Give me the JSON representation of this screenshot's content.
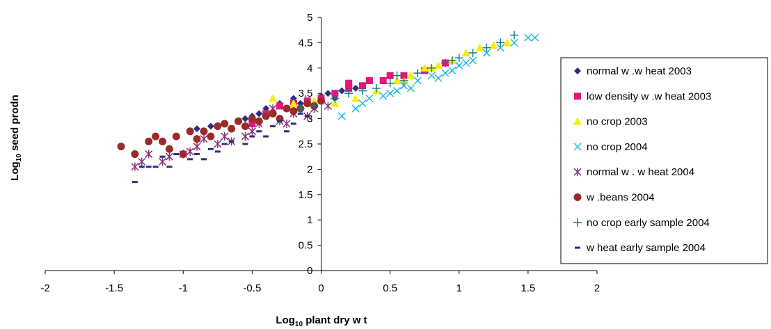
{
  "chart_data": {
    "type": "scatter",
    "title": "",
    "xlabel": "Log10 plant dry wt",
    "ylabel": "Log10 seed prodn",
    "xlabel_parts": {
      "pre": "Log",
      "sub": "10",
      "post": " plant dry w t"
    },
    "ylabel_parts": {
      "pre": "Log",
      "sub": "10",
      "post": " seed prodn"
    },
    "xlim": [
      -2,
      2
    ],
    "ylim": [
      0,
      5
    ],
    "x_ticks": [
      -2,
      -1.5,
      -1,
      -0.5,
      0,
      0.5,
      1,
      1.5,
      2
    ],
    "y_ticks": [
      0,
      0.5,
      1,
      1.5,
      2,
      2.5,
      3,
      3.5,
      4,
      4.5,
      5
    ],
    "x_tick_labels": [
      "-2",
      "-1.5",
      "-1",
      "-0.5",
      "0",
      "0.5",
      "1",
      "1.5",
      "2"
    ],
    "y_tick_labels": [
      "0",
      "0.5",
      "1",
      "1.5",
      "2",
      "2.5",
      "3",
      "3.5",
      "4",
      "4.5",
      "5"
    ],
    "grid": false,
    "legend_position": "right",
    "series": [
      {
        "name": "normal w .w heat 2003",
        "marker": "diamond",
        "color": "#2b2f7e",
        "points": [
          [
            -0.9,
            2.8
          ],
          [
            -0.8,
            2.85
          ],
          [
            -0.6,
            2.95
          ],
          [
            -0.5,
            3.05
          ],
          [
            -0.4,
            3.2
          ],
          [
            -0.3,
            3.3
          ],
          [
            -0.2,
            3.4
          ],
          [
            -0.1,
            3.35
          ],
          [
            0,
            3.45
          ],
          [
            0.05,
            3.5
          ],
          [
            0.15,
            3.55
          ],
          [
            0.25,
            3.6
          ],
          [
            -0.45,
            3.1
          ],
          [
            -0.55,
            3.0
          ],
          [
            -0.15,
            3.3
          ],
          [
            0.1,
            3.4
          ]
        ]
      },
      {
        "name": "low density w .w heat 2003",
        "marker": "square",
        "color": "#e0187a",
        "points": [
          [
            -0.5,
            2.9
          ],
          [
            -0.4,
            3.1
          ],
          [
            -0.3,
            3.25
          ],
          [
            -0.2,
            3.3
          ],
          [
            0.1,
            3.5
          ],
          [
            0.2,
            3.6
          ],
          [
            0.35,
            3.75
          ],
          [
            0.5,
            3.85
          ],
          [
            0.6,
            3.85
          ],
          [
            0.75,
            3.95
          ],
          [
            0.9,
            4.1
          ],
          [
            0.3,
            3.65
          ],
          [
            0.45,
            3.75
          ],
          [
            -0.1,
            3.35
          ],
          [
            0,
            3.4
          ],
          [
            0.2,
            3.7
          ]
        ]
      },
      {
        "name": "no crop 2003",
        "marker": "triangle",
        "color": "#f2f200",
        "points": [
          [
            -0.35,
            3.4
          ],
          [
            -0.2,
            3.3
          ],
          [
            -0.05,
            3.35
          ],
          [
            0.1,
            3.3
          ],
          [
            0.25,
            3.4
          ],
          [
            0.4,
            3.55
          ],
          [
            0.55,
            3.75
          ],
          [
            0.65,
            3.85
          ],
          [
            0.75,
            4.0
          ],
          [
            0.85,
            4.05
          ],
          [
            0.95,
            4.15
          ],
          [
            1.05,
            4.3
          ],
          [
            1.15,
            4.4
          ],
          [
            1.25,
            4.45
          ],
          [
            1.35,
            4.5
          ],
          [
            0.6,
            3.75
          ],
          [
            0.8,
            4.0
          ]
        ]
      },
      {
        "name": "no crop 2004",
        "marker": "x",
        "color": "#22b5e6",
        "points": [
          [
            0.15,
            3.05
          ],
          [
            0.25,
            3.2
          ],
          [
            0.3,
            3.3
          ],
          [
            0.45,
            3.45
          ],
          [
            0.55,
            3.55
          ],
          [
            0.65,
            3.6
          ],
          [
            0.7,
            3.75
          ],
          [
            0.8,
            3.85
          ],
          [
            0.9,
            3.9
          ],
          [
            1.0,
            4.05
          ],
          [
            1.1,
            4.15
          ],
          [
            1.2,
            4.3
          ],
          [
            1.3,
            4.4
          ],
          [
            1.4,
            4.5
          ],
          [
            1.5,
            4.6
          ],
          [
            1.55,
            4.6
          ],
          [
            0.35,
            3.4
          ],
          [
            0.5,
            3.5
          ],
          [
            0.6,
            3.65
          ],
          [
            0.85,
            3.8
          ],
          [
            0.95,
            3.95
          ],
          [
            1.05,
            4.1
          ]
        ]
      },
      {
        "name": "normal w . w heat 2004",
        "marker": "asterisk",
        "color": "#8b2d7a",
        "points": [
          [
            -1.35,
            2.05
          ],
          [
            -1.25,
            2.3
          ],
          [
            -1.15,
            2.15
          ],
          [
            -1.0,
            2.3
          ],
          [
            -0.9,
            2.45
          ],
          [
            -0.85,
            2.6
          ],
          [
            -0.75,
            2.5
          ],
          [
            -0.65,
            2.55
          ],
          [
            -0.55,
            2.65
          ],
          [
            -0.45,
            2.9
          ],
          [
            -0.3,
            2.95
          ],
          [
            -0.2,
            3.1
          ],
          [
            -0.1,
            3.05
          ],
          [
            -0.05,
            3.2
          ],
          [
            -1.1,
            2.25
          ],
          [
            -0.95,
            2.35
          ],
          [
            -0.7,
            2.65
          ],
          [
            -0.5,
            2.75
          ],
          [
            -0.35,
            3.2
          ],
          [
            -1.3,
            2.15
          ],
          [
            0.05,
            3.25
          ],
          [
            -0.25,
            2.9
          ]
        ]
      },
      {
        "name": "w .beans 2004",
        "marker": "circle",
        "color": "#9b2b2b",
        "points": [
          [
            -1.45,
            2.45
          ],
          [
            -1.35,
            2.3
          ],
          [
            -1.25,
            2.55
          ],
          [
            -1.2,
            2.65
          ],
          [
            -1.15,
            2.55
          ],
          [
            -1.1,
            2.4
          ],
          [
            -1.05,
            2.65
          ],
          [
            -0.95,
            2.75
          ],
          [
            -0.9,
            2.6
          ],
          [
            -0.85,
            2.75
          ],
          [
            -0.8,
            2.65
          ],
          [
            -0.75,
            2.85
          ],
          [
            -0.7,
            2.9
          ],
          [
            -0.65,
            2.8
          ],
          [
            -0.6,
            2.95
          ],
          [
            -0.5,
            3.0
          ],
          [
            -0.45,
            2.95
          ],
          [
            -0.4,
            3.05
          ],
          [
            -0.35,
            3.1
          ],
          [
            -0.25,
            3.2
          ],
          [
            -0.2,
            3.15
          ],
          [
            -0.1,
            3.3
          ],
          [
            -0.05,
            3.25
          ],
          [
            0.0,
            3.35
          ],
          [
            -1.0,
            2.3
          ],
          [
            -0.55,
            2.85
          ],
          [
            -0.3,
            3.0
          ],
          [
            -0.15,
            3.2
          ]
        ]
      },
      {
        "name": "no crop early sample 2004",
        "marker": "plus",
        "color": "#127c86",
        "points": [
          [
            -0.15,
            3.2
          ],
          [
            -0.05,
            3.25
          ],
          [
            0.1,
            3.4
          ],
          [
            0.2,
            3.5
          ],
          [
            0.3,
            3.55
          ],
          [
            0.4,
            3.6
          ],
          [
            0.5,
            3.7
          ],
          [
            0.6,
            3.75
          ],
          [
            0.7,
            3.9
          ],
          [
            0.8,
            4.0
          ],
          [
            0.9,
            4.1
          ],
          [
            1.0,
            4.2
          ],
          [
            1.1,
            4.3
          ],
          [
            1.2,
            4.4
          ],
          [
            1.3,
            4.5
          ],
          [
            1.4,
            4.65
          ],
          [
            0.55,
            3.85
          ],
          [
            0.95,
            4.15
          ]
        ]
      },
      {
        "name": "w heat early sample 2004",
        "marker": "dash",
        "color": "#2b2f7e",
        "points": [
          [
            -1.35,
            1.75
          ],
          [
            -1.3,
            2.05
          ],
          [
            -1.2,
            2.05
          ],
          [
            -1.1,
            2.05
          ],
          [
            -1.05,
            2.3
          ],
          [
            -0.95,
            2.2
          ],
          [
            -0.85,
            2.2
          ],
          [
            -0.8,
            2.4
          ],
          [
            -0.7,
            2.5
          ],
          [
            -0.65,
            2.55
          ],
          [
            -0.5,
            2.65
          ],
          [
            -0.45,
            2.75
          ],
          [
            -0.35,
            2.85
          ],
          [
            -0.3,
            2.95
          ],
          [
            -0.2,
            2.9
          ],
          [
            -0.1,
            3.05
          ],
          [
            -1.15,
            2.25
          ],
          [
            -0.75,
            2.35
          ],
          [
            -0.55,
            2.5
          ],
          [
            -0.4,
            2.65
          ],
          [
            -0.25,
            2.75
          ],
          [
            -0.15,
            3.1
          ],
          [
            -1.25,
            2.05
          ],
          [
            -0.9,
            2.3
          ]
        ]
      }
    ]
  }
}
